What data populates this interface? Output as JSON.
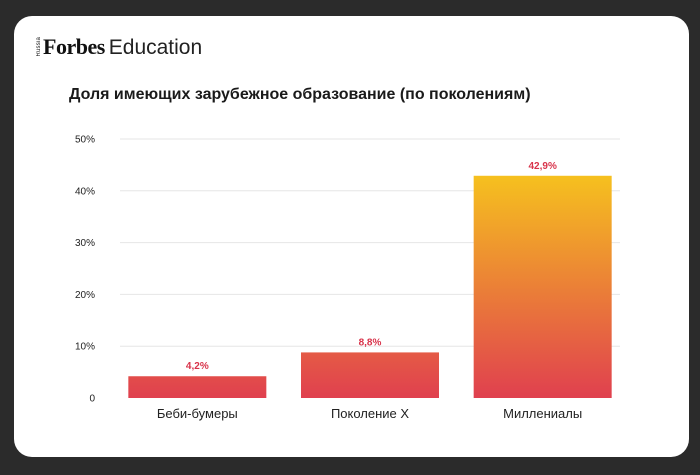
{
  "brand": {
    "russia": "Russia",
    "forbes": "Forbes",
    "education": "Education"
  },
  "chart_data": {
    "type": "bar",
    "title": "Доля имеющих зарубежное образование (по поколениям)",
    "xlabel": "",
    "ylabel": "",
    "categories": [
      "Беби-бумеры",
      "Поколение X",
      "Миллениалы"
    ],
    "values": [
      4.2,
      8.8,
      42.9
    ],
    "data_labels": [
      "4,2%",
      "8,8%",
      "42,9%"
    ],
    "ylim": [
      0,
      50
    ],
    "yticks": [
      0,
      10,
      20,
      30,
      40,
      50
    ],
    "ytick_labels": [
      "0",
      "10%",
      "20%",
      "30%",
      "40%",
      "50%"
    ],
    "grid": true,
    "legend": "none",
    "colors": {
      "bar_bottom": "#e0404f",
      "bar_top": "#f6c21e",
      "data_label": "#d8334a",
      "grid": "#e6e6e6",
      "axis_text": "#222222"
    }
  }
}
